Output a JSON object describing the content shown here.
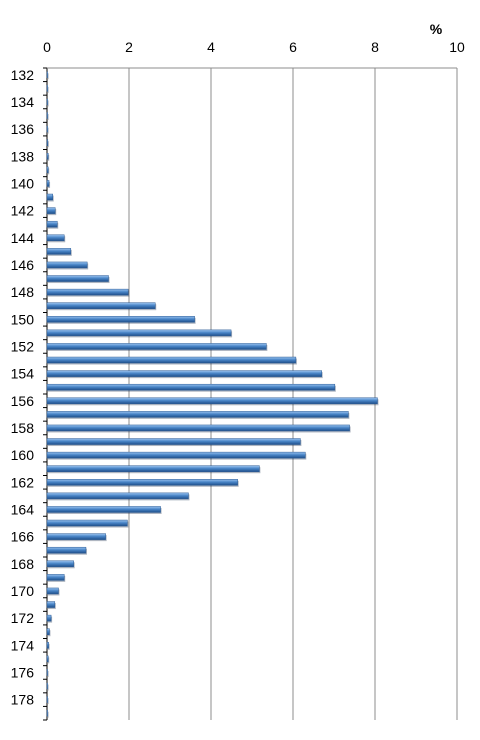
{
  "chart_data": {
    "type": "bar",
    "orientation": "horizontal",
    "title": "",
    "xlabel": "",
    "ylabel": "",
    "unit_label": "%",
    "xlim": [
      0,
      10
    ],
    "x_ticks": [
      "0",
      "2",
      "4",
      "6",
      "8",
      "10"
    ],
    "grid": "vertical",
    "categories": [
      "132",
      "133",
      "134",
      "135",
      "136",
      "137",
      "138",
      "139",
      "140",
      "141",
      "142",
      "143",
      "144",
      "145",
      "146",
      "147",
      "148",
      "149",
      "150",
      "151",
      "152",
      "153",
      "154",
      "155",
      "156",
      "157",
      "158",
      "159",
      "160",
      "161",
      "162",
      "163",
      "164",
      "165",
      "166",
      "167",
      "168",
      "169",
      "170",
      "171",
      "172",
      "173",
      "174",
      "175",
      "176",
      "177",
      "178",
      "179"
    ],
    "category_labels": [
      "132",
      "",
      "134",
      "",
      "136",
      "",
      "138",
      "",
      "140",
      "",
      "142",
      "",
      "144",
      "",
      "146",
      "",
      "148",
      "",
      "150",
      "",
      "152",
      "",
      "154",
      "",
      "156",
      "",
      "158",
      "",
      "160",
      "",
      "162",
      "",
      "164",
      "",
      "166",
      "",
      "168",
      "",
      "170",
      "",
      "172",
      "",
      "174",
      "",
      "176",
      "",
      "178",
      ""
    ],
    "values": [
      0.01,
      0.01,
      0.01,
      0.0,
      0.0,
      0.02,
      0.03,
      0.03,
      0.05,
      0.14,
      0.2,
      0.25,
      0.42,
      0.58,
      0.98,
      1.5,
      1.98,
      2.64,
      3.6,
      4.49,
      5.35,
      6.07,
      6.7,
      7.02,
      8.06,
      7.35,
      7.38,
      6.18,
      6.3,
      5.18,
      4.65,
      3.45,
      2.77,
      1.96,
      1.43,
      0.95,
      0.65,
      0.42,
      0.28,
      0.19,
      0.1,
      0.06,
      0.04,
      0.03,
      0.01,
      0.0,
      0.01,
      0.01
    ],
    "bar_color": "#4a86c8"
  }
}
